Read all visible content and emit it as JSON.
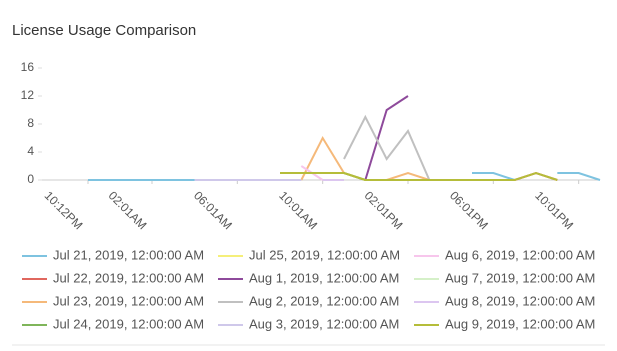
{
  "chart_data": {
    "type": "line",
    "title": "License Usage Comparison",
    "categories": [
      "10:12PM",
      null,
      null,
      "02:01AM",
      null,
      null,
      null,
      "06:01AM",
      null,
      null,
      null,
      "10:01AM",
      null,
      null,
      null,
      "02:01PM",
      null,
      null,
      null,
      "06:01PM",
      null,
      null,
      null,
      "10:01PM",
      null
    ],
    "ylim": [
      0,
      16
    ],
    "yticks": [
      0,
      4,
      8,
      12,
      16
    ],
    "series": [
      {
        "name": "Jul 21, 2019, 12:00:00 AM",
        "color": "#7ec3e0",
        "values": [
          0,
          0,
          0,
          0,
          0,
          0,
          null,
          null,
          null,
          null,
          null,
          null,
          null,
          null,
          null,
          null,
          null,
          null,
          1,
          1,
          0,
          null,
          1,
          1,
          0
        ]
      },
      {
        "name": "Jul 22, 2019, 12:00:00 AM",
        "color": "#e0675e",
        "values": [
          null,
          null,
          null,
          null,
          null,
          null,
          null,
          null,
          null,
          null,
          null,
          null,
          null,
          null,
          null,
          null,
          null,
          null,
          null,
          null,
          0,
          1,
          0,
          null,
          null
        ]
      },
      {
        "name": "Jul 23, 2019, 12:00:00 AM",
        "color": "#f5b97a",
        "values": [
          null,
          null,
          null,
          null,
          null,
          null,
          null,
          null,
          null,
          null,
          0,
          6,
          1,
          0,
          0,
          1,
          0,
          null,
          null,
          null,
          null,
          null,
          null,
          null,
          null
        ]
      },
      {
        "name": "Jul 24, 2019, 12:00:00 AM",
        "color": "#7fb55a",
        "values": [
          null,
          null,
          null,
          null,
          null,
          null,
          null,
          null,
          null,
          1,
          1,
          1,
          1,
          0,
          null,
          null,
          null,
          null,
          null,
          null,
          null,
          null,
          null,
          null,
          null
        ]
      },
      {
        "name": "Jul 25, 2019, 12:00:00 AM",
        "color": "#f5ef7a",
        "values": [
          null,
          null,
          null,
          null,
          null,
          null,
          null,
          null,
          null,
          1,
          1,
          null,
          null,
          null,
          null,
          null,
          null,
          null,
          null,
          null,
          null,
          null,
          null,
          null,
          null
        ]
      },
      {
        "name": "Aug 1, 2019, 12:00:00 AM",
        "color": "#8e4a9b",
        "values": [
          null,
          null,
          null,
          null,
          null,
          null,
          null,
          null,
          null,
          null,
          null,
          null,
          null,
          0,
          10,
          12,
          null,
          null,
          null,
          null,
          null,
          null,
          null,
          null,
          null
        ]
      },
      {
        "name": "Aug 2, 2019, 12:00:00 AM",
        "color": "#c0c0c0",
        "values": [
          null,
          null,
          null,
          null,
          null,
          null,
          null,
          null,
          null,
          null,
          null,
          null,
          3,
          9,
          3,
          7,
          0,
          null,
          null,
          null,
          null,
          null,
          null,
          null,
          null
        ]
      },
      {
        "name": "Aug 3, 2019, 12:00:00 AM",
        "color": "#cfc8ea",
        "values": [
          null,
          null,
          null,
          null,
          null,
          0,
          0,
          0,
          0,
          0,
          0,
          null,
          null,
          null,
          null,
          null,
          null,
          null,
          null,
          null,
          null,
          null,
          null,
          null,
          null
        ]
      },
      {
        "name": "Aug 6, 2019, 12:00:00 AM",
        "color": "#f7c6ec",
        "values": [
          null,
          null,
          null,
          null,
          null,
          null,
          null,
          null,
          null,
          null,
          2,
          0,
          null,
          null,
          null,
          null,
          null,
          null,
          null,
          null,
          null,
          null,
          null,
          null,
          null
        ]
      },
      {
        "name": "Aug 7, 2019, 12:00:00 AM",
        "color": "#d5f0c8",
        "values": [
          null,
          null,
          null,
          null,
          null,
          null,
          null,
          null,
          null,
          null,
          null,
          null,
          null,
          null,
          null,
          null,
          0,
          0,
          0,
          null,
          null,
          null,
          null,
          null,
          null
        ]
      },
      {
        "name": "Aug 8, 2019, 12:00:00 AM",
        "color": "#dcc6f0",
        "values": [
          null,
          null,
          null,
          null,
          null,
          null,
          null,
          null,
          null,
          null,
          null,
          0,
          0,
          null,
          null,
          null,
          null,
          null,
          null,
          null,
          null,
          null,
          null,
          null,
          null
        ]
      },
      {
        "name": "Aug 9, 2019, 12:00:00 AM",
        "color": "#b5bd3a",
        "values": [
          null,
          null,
          null,
          null,
          null,
          null,
          null,
          null,
          null,
          1,
          1,
          1,
          1,
          0,
          0,
          0,
          0,
          0,
          0,
          0,
          0,
          1,
          0,
          null,
          null
        ]
      }
    ]
  }
}
